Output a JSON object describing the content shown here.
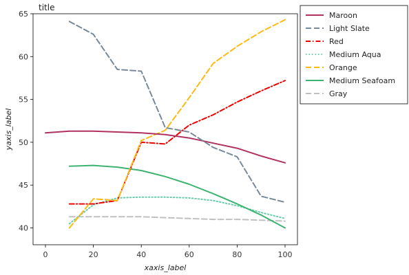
{
  "chart_data": {
    "type": "line",
    "title": "title",
    "xlabel": "xaxis_label",
    "ylabel": "yaxis_label",
    "xlim": [
      0,
      100
    ],
    "ylim": [
      39,
      65
    ],
    "x_ticks": [
      0,
      20,
      40,
      60,
      80,
      100
    ],
    "y_ticks": [
      40,
      45,
      50,
      55,
      60,
      65
    ],
    "grid": false,
    "legend_position": "right",
    "x": [
      0,
      10,
      20,
      30,
      40,
      50,
      60,
      70,
      80,
      90,
      100
    ],
    "series": [
      {
        "name": "Maroon",
        "color": "#b03060",
        "dash": "solid",
        "values": [
          51.1,
          51.3,
          51.3,
          51.2,
          51.1,
          50.9,
          50.5,
          49.9,
          49.3,
          48.4,
          47.6
        ]
      },
      {
        "name": "Light Slate",
        "color": "#778899",
        "dash": "dashed",
        "values": [
          null,
          64.1,
          62.6,
          58.5,
          58.3,
          51.7,
          51.2,
          49.4,
          48.3,
          43.7,
          43.0
        ]
      },
      {
        "name": "Red",
        "color": "#ee0000",
        "dash": "dashdot",
        "values": [
          null,
          42.8,
          42.8,
          43.2,
          50.0,
          49.8,
          52.0,
          53.2,
          54.7,
          56.0,
          57.2
        ]
      },
      {
        "name": "Medium Aqua",
        "color": "#66cdaa",
        "dash": "dotted",
        "values": [
          null,
          40.5,
          42.7,
          43.5,
          43.6,
          43.6,
          43.5,
          43.2,
          42.6,
          41.8,
          41.1
        ]
      },
      {
        "name": "Orange",
        "color": "#ffb90f",
        "dash": "dashed",
        "values": [
          null,
          40.0,
          43.4,
          43.2,
          50.2,
          51.4,
          55.2,
          59.2,
          61.2,
          62.9,
          64.3
        ]
      },
      {
        "name": "Medium Seafoam",
        "color": "#3cb371",
        "dash": "solid",
        "values": [
          null,
          47.2,
          47.3,
          47.1,
          46.7,
          46.0,
          45.1,
          44.0,
          42.8,
          41.5,
          40.0
        ]
      },
      {
        "name": "Gray",
        "color": "#c0c0c0",
        "dash": "dashed",
        "values": [
          null,
          41.3,
          41.3,
          41.3,
          41.3,
          41.2,
          41.1,
          41.0,
          41.0,
          40.9,
          40.8
        ]
      }
    ]
  }
}
